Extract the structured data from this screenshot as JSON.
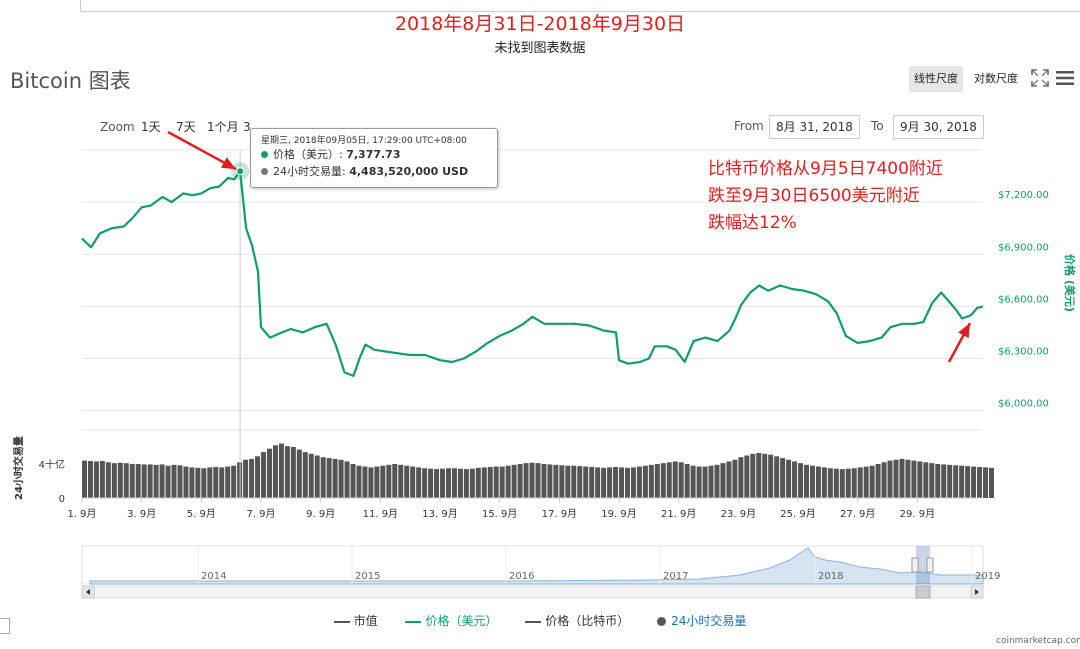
{
  "header": {
    "range_title": "2018年8月31日-2018年9月30日",
    "no_data_text": "未找到图表数据",
    "page_title": "Bitcoin 图表"
  },
  "scale_buttons": {
    "linear": "线性尺度",
    "log": "对数尺度"
  },
  "zoom": {
    "label": "Zoom",
    "buttons": [
      "1天",
      "7天",
      "1个月",
      "3"
    ]
  },
  "date_range": {
    "from_label": "From",
    "from_value": "8月 31, 2018",
    "to_label": "To",
    "to_value": "9月 30, 2018"
  },
  "tooltip": {
    "date": "星期三, 2018年09月05日, 17:29:00 UTC+08:00",
    "price_label": "价格（美元）: ",
    "price_value": "7,377.73",
    "volume_label": "24小时交易量: ",
    "volume_value": "4,483,520,000 USD"
  },
  "annotation": [
    "比特币价格从9月5日7400附近",
    "跌至9月30日6500美元附近",
    "跌幅达12%"
  ],
  "legend": {
    "market_cap": "市值",
    "price_usd": "价格（美元）",
    "price_btc": "价格（比特币）",
    "volume_24h": "24小时交易量"
  },
  "credit": "coinmarketcap.com",
  "colors": {
    "price": "#109c6f",
    "volume": "#555555",
    "annotation": "#e02020",
    "navigator": "#8ab3d8"
  },
  "icons": {
    "fullscreen": "fullscreen-icon",
    "menu": "menu-icon"
  },
  "chart_data": [
    {
      "type": "line",
      "title": "",
      "xlabel": "",
      "ylabel": "价格 (美元)",
      "y_tick_labels": [
        "$6,000.00",
        "$6,300.00",
        "$6,600.00",
        "$6,900.00",
        "$7,200.00"
      ],
      "ylim": [
        5900,
        7500
      ],
      "x_tick_labels": [
        "1. 9月",
        "3. 9月",
        "5. 9月",
        "7. 9月",
        "9. 9月",
        "11. 9月",
        "13. 9月",
        "15. 9月",
        "17. 9月",
        "19. 9月",
        "21. 9月",
        "23. 9月",
        "25. 9月",
        "27. 9月",
        "29. 9月"
      ],
      "xlim": [
        0.0,
        30.2
      ],
      "grid": true,
      "series": [
        {
          "name": "价格（美元）",
          "points": [
            [
              0.0,
              6990
            ],
            [
              0.3,
              6940
            ],
            [
              0.6,
              7020
            ],
            [
              1.0,
              7050
            ],
            [
              1.4,
              7060
            ],
            [
              1.7,
              7110
            ],
            [
              2.0,
              7170
            ],
            [
              2.3,
              7180
            ],
            [
              2.7,
              7230
            ],
            [
              3.0,
              7200
            ],
            [
              3.4,
              7250
            ],
            [
              3.7,
              7240
            ],
            [
              4.0,
              7250
            ],
            [
              4.3,
              7280
            ],
            [
              4.6,
              7290
            ],
            [
              4.9,
              7340
            ],
            [
              5.1,
              7330
            ],
            [
              5.3,
              7378
            ],
            [
              5.5,
              7050
            ],
            [
              5.7,
              6950
            ],
            [
              5.9,
              6800
            ],
            [
              6.0,
              6480
            ],
            [
              6.3,
              6420
            ],
            [
              6.7,
              6450
            ],
            [
              7.0,
              6470
            ],
            [
              7.4,
              6450
            ],
            [
              7.8,
              6480
            ],
            [
              8.2,
              6500
            ],
            [
              8.5,
              6380
            ],
            [
              8.8,
              6220
            ],
            [
              9.1,
              6200
            ],
            [
              9.3,
              6300
            ],
            [
              9.5,
              6380
            ],
            [
              9.8,
              6350
            ],
            [
              10.2,
              6340
            ],
            [
              10.6,
              6330
            ],
            [
              11.0,
              6320
            ],
            [
              11.5,
              6320
            ],
            [
              12.0,
              6290
            ],
            [
              12.4,
              6280
            ],
            [
              12.8,
              6300
            ],
            [
              13.2,
              6340
            ],
            [
              13.6,
              6390
            ],
            [
              14.0,
              6430
            ],
            [
              14.4,
              6460
            ],
            [
              14.8,
              6500
            ],
            [
              15.1,
              6540
            ],
            [
              15.5,
              6500
            ],
            [
              16.0,
              6500
            ],
            [
              16.5,
              6500
            ],
            [
              17.0,
              6490
            ],
            [
              17.5,
              6460
            ],
            [
              17.9,
              6450
            ],
            [
              18.0,
              6290
            ],
            [
              18.3,
              6270
            ],
            [
              18.7,
              6280
            ],
            [
              19.0,
              6300
            ],
            [
              19.2,
              6370
            ],
            [
              19.6,
              6370
            ],
            [
              19.9,
              6350
            ],
            [
              20.2,
              6280
            ],
            [
              20.5,
              6400
            ],
            [
              20.9,
              6420
            ],
            [
              21.3,
              6400
            ],
            [
              21.7,
              6460
            ],
            [
              21.9,
              6530
            ],
            [
              22.1,
              6610
            ],
            [
              22.4,
              6680
            ],
            [
              22.7,
              6720
            ],
            [
              23.0,
              6690
            ],
            [
              23.4,
              6720
            ],
            [
              23.8,
              6700
            ],
            [
              24.2,
              6690
            ],
            [
              24.6,
              6670
            ],
            [
              25.0,
              6630
            ],
            [
              25.3,
              6560
            ],
            [
              25.6,
              6430
            ],
            [
              26.0,
              6390
            ],
            [
              26.4,
              6400
            ],
            [
              26.8,
              6420
            ],
            [
              27.1,
              6480
            ],
            [
              27.5,
              6500
            ],
            [
              27.9,
              6500
            ],
            [
              28.2,
              6510
            ],
            [
              28.5,
              6620
            ],
            [
              28.8,
              6680
            ],
            [
              29.1,
              6620
            ],
            [
              29.3,
              6580
            ],
            [
              29.5,
              6530
            ],
            [
              29.8,
              6550
            ],
            [
              30.0,
              6590
            ],
            [
              30.2,
              6600
            ]
          ]
        }
      ]
    },
    {
      "type": "bar",
      "title": "",
      "ylabel": "24小时交易量",
      "y_tick_labels": [
        "0",
        "4十亿"
      ],
      "ylim": [
        0,
        8000000000
      ],
      "series": [
        {
          "name": "24小时交易量",
          "x_start": 0.0,
          "x_step": 0.2,
          "values": [
            4400000000,
            4350000000,
            4300000000,
            4350000000,
            4200000000,
            4100000000,
            4150000000,
            4100000000,
            4000000000,
            4000000000,
            3950000000,
            3950000000,
            3900000000,
            3950000000,
            3800000000,
            3900000000,
            3850000000,
            3700000000,
            3600000000,
            3550000000,
            3500000000,
            3600000000,
            3650000000,
            3600000000,
            3700000000,
            3800000000,
            4200000000,
            4500000000,
            4600000000,
            4900000000,
            5400000000,
            5800000000,
            6200000000,
            6400000000,
            6100000000,
            6000000000,
            5700000000,
            5400000000,
            5200000000,
            5000000000,
            4800000000,
            4700000000,
            4600000000,
            4500000000,
            4300000000,
            4000000000,
            3800000000,
            3700000000,
            3600000000,
            3700000000,
            3800000000,
            3900000000,
            4000000000,
            3900000000,
            3800000000,
            3700000000,
            3600000000,
            3500000000,
            3450000000,
            3400000000,
            3450000000,
            3500000000,
            3500000000,
            3450000000,
            3400000000,
            3450000000,
            3550000000,
            3600000000,
            3650000000,
            3700000000,
            3700000000,
            3800000000,
            3900000000,
            4000000000,
            4100000000,
            4150000000,
            4100000000,
            4000000000,
            3950000000,
            3900000000,
            3850000000,
            3800000000,
            3800000000,
            3750000000,
            3700000000,
            3650000000,
            3600000000,
            3550000000,
            3600000000,
            3650000000,
            3600000000,
            3550000000,
            3600000000,
            3700000000,
            3800000000,
            3900000000,
            4000000000,
            4100000000,
            4200000000,
            4300000000,
            4200000000,
            4000000000,
            3800000000,
            3700000000,
            3700000000,
            3800000000,
            3900000000,
            4100000000,
            4300000000,
            4500000000,
            4800000000,
            5000000000,
            5200000000,
            5300000000,
            5200000000,
            5100000000,
            4900000000,
            4700000000,
            4500000000,
            4300000000,
            4100000000,
            3900000000,
            3800000000,
            3700000000,
            3600000000,
            3500000000,
            3450000000,
            3400000000,
            3450000000,
            3500000000,
            3600000000,
            3700000000,
            3800000000,
            4000000000,
            4200000000,
            4400000000,
            4500000000,
            4600000000,
            4500000000,
            4400000000,
            4300000000,
            4200000000,
            4100000000,
            4000000000,
            3950000000,
            3900000000,
            3850000000,
            3800000000,
            3750000000,
            3700000000,
            3650000000,
            3600000000,
            3550000000
          ]
        }
      ]
    },
    {
      "type": "area",
      "title": "",
      "x_tick_labels": [
        "2014",
        "2015",
        "2016",
        "2017",
        "2018",
        "2019"
      ]
    }
  ]
}
